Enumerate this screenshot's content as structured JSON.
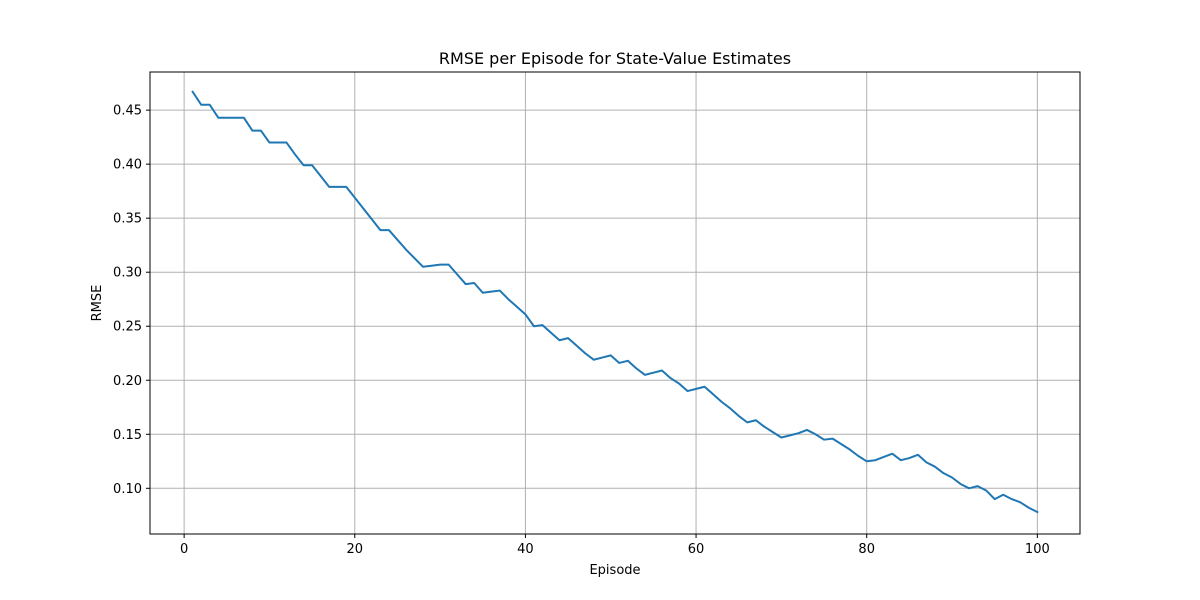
{
  "chart_data": {
    "type": "line",
    "title": "RMSE per Episode for State-Value Estimates",
    "xlabel": "Episode",
    "ylabel": "RMSE",
    "xlim": [
      -4,
      105
    ],
    "ylim": [
      0.0577,
      0.4853
    ],
    "xticks": [
      0,
      20,
      40,
      60,
      80,
      100
    ],
    "yticks": [
      0.1,
      0.15,
      0.2,
      0.25,
      0.3,
      0.35,
      0.4,
      0.45
    ],
    "ytick_labels": [
      "0.10",
      "0.15",
      "0.20",
      "0.25",
      "0.30",
      "0.35",
      "0.40",
      "0.45"
    ],
    "grid": true,
    "series_color": "#1f77b4",
    "series": [
      {
        "x": [
          1,
          2,
          3,
          4,
          5,
          6,
          7,
          8,
          9,
          10,
          11,
          12,
          13,
          14,
          15,
          16,
          17,
          18,
          19,
          20,
          21,
          22,
          23,
          24,
          25,
          26,
          27,
          28,
          29,
          30,
          31,
          32,
          33,
          34,
          35,
          36,
          37,
          38,
          39,
          40,
          41,
          42,
          43,
          44,
          45,
          46,
          47,
          48,
          49,
          50,
          51,
          52,
          53,
          54,
          55,
          56,
          57,
          58,
          59,
          60,
          61,
          62,
          63,
          64,
          65,
          66,
          67,
          68,
          69,
          70,
          71,
          72,
          73,
          74,
          75,
          76,
          77,
          78,
          79,
          80,
          81,
          82,
          83,
          84,
          85,
          86,
          87,
          88,
          89,
          90,
          91,
          92,
          93,
          94,
          95,
          96,
          97,
          98,
          99,
          100
        ],
        "values": [
          0.467,
          0.455,
          0.455,
          0.443,
          0.443,
          0.443,
          0.443,
          0.431,
          0.431,
          0.42,
          0.42,
          0.42,
          0.409,
          0.399,
          0.399,
          0.389,
          0.379,
          0.379,
          0.379,
          0.369,
          0.359,
          0.349,
          0.339,
          0.339,
          0.33,
          0.321,
          0.313,
          0.305,
          0.306,
          0.307,
          0.307,
          0.298,
          0.289,
          0.29,
          0.281,
          0.282,
          0.283,
          0.275,
          0.268,
          0.261,
          0.25,
          0.251,
          0.244,
          0.237,
          0.239,
          0.232,
          0.225,
          0.219,
          0.221,
          0.223,
          0.216,
          0.218,
          0.211,
          0.205,
          0.207,
          0.209,
          0.202,
          0.197,
          0.19,
          0.192,
          0.194,
          0.187,
          0.18,
          0.174,
          0.167,
          0.161,
          0.163,
          0.157,
          0.152,
          0.147,
          0.149,
          0.151,
          0.154,
          0.15,
          0.145,
          0.146,
          0.141,
          0.136,
          0.13,
          0.125,
          0.126,
          0.129,
          0.132,
          0.126,
          0.128,
          0.131,
          0.124,
          0.12,
          0.114,
          0.11,
          0.104,
          0.1,
          0.102,
          0.098,
          0.09,
          0.094,
          0.09,
          0.087,
          0.082,
          0.078
        ]
      }
    ]
  }
}
